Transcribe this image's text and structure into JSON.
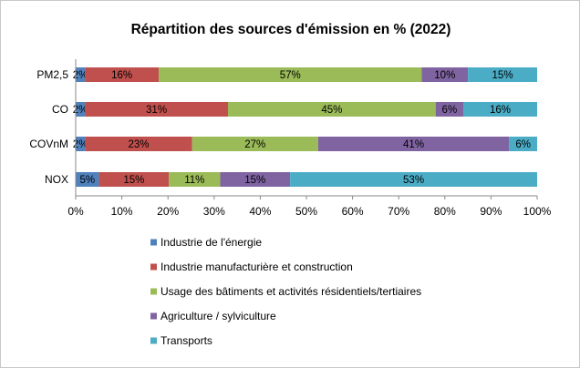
{
  "chart_data": {
    "type": "bar",
    "orientation": "horizontal",
    "stacked": "100%",
    "title": "Répartition des sources d'émission en % (2022)",
    "categories": [
      "PM2,5",
      "CO",
      "COVnM",
      "NOX"
    ],
    "series": [
      {
        "name": "Industrie de l'énergie",
        "color": "#4F81BD",
        "values": [
          2,
          2,
          2,
          5
        ],
        "labels": [
          "2%",
          "2%",
          "2%",
          "5%"
        ]
      },
      {
        "name": "Industrie manufacturière et construction",
        "color": "#C0504D",
        "values": [
          16,
          31,
          23,
          15
        ],
        "labels": [
          "16%",
          "31%",
          "23%",
          "15%"
        ]
      },
      {
        "name": "Usage des bâtiments et activités résidentiels/tertiaires",
        "color": "#9BBB59",
        "values": [
          57,
          45,
          27,
          11
        ],
        "labels": [
          "57%",
          "45%",
          "27%",
          "11%"
        ]
      },
      {
        "name": "Agriculture / sylviculture",
        "color": "#8064A2",
        "values": [
          10,
          6,
          41,
          15
        ],
        "labels": [
          "10%",
          "6%",
          "41%",
          "15%"
        ]
      },
      {
        "name": "Transports",
        "color": "#4BACC6",
        "values": [
          15,
          16,
          6,
          53
        ],
        "labels": [
          "15%",
          "16%",
          "6%",
          "53%"
        ]
      }
    ],
    "xlim": [
      0,
      100
    ],
    "x_ticks": [
      "0%",
      "10%",
      "20%",
      "30%",
      "40%",
      "50%",
      "60%",
      "70%",
      "80%",
      "90%",
      "100%"
    ],
    "grid": false,
    "legend_position": "bottom"
  }
}
